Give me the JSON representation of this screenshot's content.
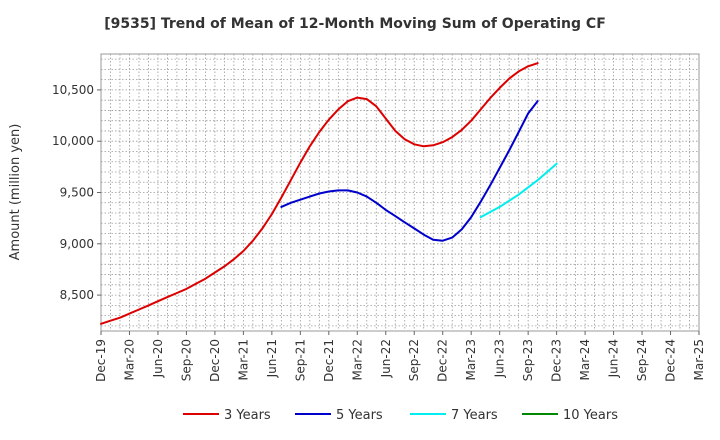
{
  "chart_data": {
    "type": "line",
    "title": "[9535]  Trend of Mean of 12-Month Moving Sum of Operating CF",
    "xlabel": "",
    "ylabel": "Amount (million yen)",
    "ylim": [
      8150,
      10850
    ],
    "yticks": [
      8500,
      9000,
      9500,
      10000,
      10500
    ],
    "ytick_labels": [
      "8,500",
      "9,000",
      "9,500",
      "10,000",
      "10,500"
    ],
    "xtick_labels": [
      "Dec-19",
      "Mar-20",
      "Jun-20",
      "Sep-20",
      "Dec-20",
      "Mar-21",
      "Jun-21",
      "Sep-21",
      "Dec-21",
      "Mar-22",
      "Jun-22",
      "Sep-22",
      "Dec-22",
      "Mar-23",
      "Jun-23",
      "Sep-23",
      "Dec-23",
      "Mar-24",
      "Jun-24",
      "Sep-24",
      "Dec-24",
      "Mar-25"
    ],
    "x_months": 63,
    "grid": true,
    "legend_position": "bottom",
    "series": [
      {
        "name": "3 Years",
        "color": "#dd0000",
        "start_index": 0,
        "values": [
          8220,
          8250,
          8280,
          8320,
          8360,
          8400,
          8440,
          8480,
          8520,
          8560,
          8610,
          8660,
          8720,
          8780,
          8850,
          8930,
          9030,
          9150,
          9290,
          9450,
          9620,
          9790,
          9950,
          10090,
          10210,
          10310,
          10390,
          10425,
          10410,
          10340,
          10220,
          10100,
          10020,
          9970,
          9950,
          9960,
          9990,
          10040,
          10110,
          10200,
          10310,
          10420,
          10520,
          10610,
          10680,
          10730,
          10760
        ]
      },
      {
        "name": "5 Years",
        "color": "#0000cc",
        "start_index": 19,
        "values": [
          9360,
          9400,
          9430,
          9460,
          9490,
          9510,
          9520,
          9520,
          9500,
          9460,
          9400,
          9330,
          9270,
          9210,
          9150,
          9090,
          9040,
          9030,
          9060,
          9140,
          9260,
          9410,
          9570,
          9740,
          9910,
          10090,
          10270,
          10390
        ]
      },
      {
        "name": "7 Years",
        "color": "#00eeee",
        "start_index": 40,
        "values": [
          9260,
          9310,
          9360,
          9420,
          9480,
          9550,
          9620,
          9700,
          9780
        ]
      },
      {
        "name": "10 Years",
        "color": "#008800",
        "start_index": 0,
        "values": []
      }
    ]
  }
}
